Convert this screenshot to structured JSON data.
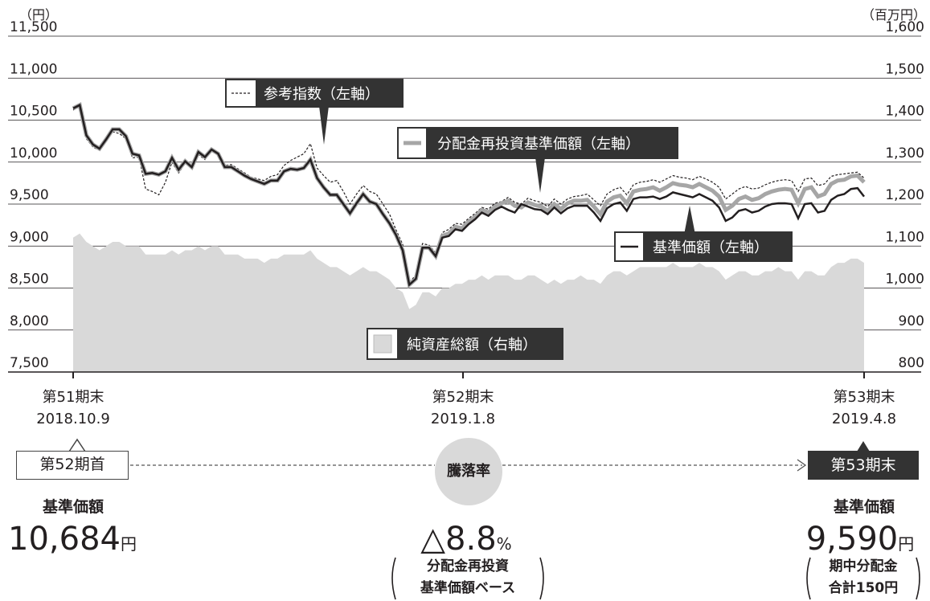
{
  "chart_data": {
    "type": "line",
    "y_left": {
      "unit": "（円）",
      "ylim": [
        7500,
        11500
      ],
      "ticks": [
        "11,500",
        "11,000",
        "10,500",
        "10,000",
        "9,500",
        "9,000",
        "8,500",
        "8,000",
        "7,500"
      ]
    },
    "y_right": {
      "unit": "（百万円）",
      "ylim": [
        800,
        1600
      ],
      "ticks": [
        "1,600",
        "1,500",
        "1,400",
        "1,300",
        "1,200",
        "1,100",
        "1,000",
        "900",
        "800"
      ]
    },
    "x_period_labels": [
      {
        "name": "第51期末",
        "date": "2018.10.9"
      },
      {
        "name": "第52期末",
        "date": "2019.1.8"
      },
      {
        "name": "第53期末",
        "date": "2019.4.8"
      }
    ],
    "legend": {
      "reference_index": "参考指数（左軸）",
      "reinvested_nav": "分配金再投資基準価額（左軸）",
      "nav": "基準価額（左軸）",
      "net_assets": "純資産総額（右軸）"
    },
    "series": [
      {
        "name": "基準価額（左軸）",
        "axis": "left",
        "values": [
          10640,
          10680,
          10320,
          10210,
          10160,
          10270,
          10390,
          10390,
          10310,
          10100,
          10080,
          9860,
          9870,
          9850,
          9890,
          10050,
          9910,
          10010,
          9940,
          10120,
          10060,
          10150,
          10100,
          9940,
          9940,
          9890,
          9840,
          9800,
          9770,
          9740,
          9780,
          9780,
          9890,
          9920,
          9910,
          9930,
          10030,
          9810,
          9700,
          9610,
          9610,
          9500,
          9390,
          9510,
          9620,
          9530,
          9500,
          9380,
          9270,
          9130,
          8950,
          8540,
          8610,
          8980,
          8980,
          8880,
          9100,
          9120,
          9200,
          9180,
          9260,
          9320,
          9400,
          9360,
          9430,
          9470,
          9430,
          9400,
          9500,
          9470,
          9440,
          9430,
          9380,
          9460,
          9390,
          9450,
          9480,
          9480,
          9480,
          9400,
          9300,
          9450,
          9500,
          9520,
          9420,
          9560,
          9580,
          9580,
          9590,
          9560,
          9590,
          9640,
          9620,
          9600,
          9580,
          9620,
          9580,
          9540,
          9460,
          9300,
          9340,
          9420,
          9440,
          9400,
          9420,
          9470,
          9500,
          9510,
          9510,
          9500,
          9330,
          9500,
          9510,
          9400,
          9420,
          9550,
          9600,
          9620,
          9680,
          9690,
          9590
        ]
      },
      {
        "name": "分配金再投資基準価額（左軸）",
        "axis": "left",
        "values": [
          10640,
          10680,
          10320,
          10210,
          10160,
          10270,
          10390,
          10390,
          10310,
          10100,
          10080,
          9860,
          9870,
          9850,
          9890,
          10050,
          9910,
          10010,
          9940,
          10120,
          10060,
          10150,
          10100,
          9940,
          9940,
          9890,
          9840,
          9800,
          9770,
          9740,
          9780,
          9780,
          9890,
          9920,
          9910,
          9930,
          10030,
          9810,
          9700,
          9610,
          9610,
          9500,
          9390,
          9510,
          9620,
          9530,
          9500,
          9380,
          9270,
          9130,
          8950,
          8540,
          8610,
          8980,
          8980,
          8880,
          9120,
          9150,
          9230,
          9210,
          9290,
          9350,
          9430,
          9400,
          9470,
          9510,
          9540,
          9480,
          9460,
          9520,
          9490,
          9470,
          9420,
          9500,
          9440,
          9510,
          9540,
          9540,
          9550,
          9470,
          9380,
          9530,
          9580,
          9600,
          9510,
          9650,
          9670,
          9680,
          9700,
          9660,
          9700,
          9750,
          9730,
          9720,
          9700,
          9740,
          9700,
          9660,
          9590,
          9430,
          9480,
          9560,
          9590,
          9550,
          9570,
          9620,
          9650,
          9670,
          9680,
          9670,
          9510,
          9680,
          9700,
          9590,
          9620,
          9740,
          9780,
          9790,
          9830,
          9840,
          9760
        ]
      },
      {
        "name": "参考指数（左軸）",
        "axis": "left",
        "values": [
          10620,
          10660,
          10280,
          10180,
          10140,
          10250,
          10360,
          10340,
          10280,
          10050,
          10060,
          9680,
          9650,
          9610,
          9760,
          10000,
          9870,
          9990,
          9960,
          10090,
          10030,
          10150,
          10120,
          9960,
          9970,
          9920,
          9870,
          9820,
          9800,
          9780,
          9830,
          9850,
          9960,
          10020,
          10060,
          10100,
          10220,
          9930,
          9840,
          9760,
          9780,
          9650,
          9500,
          9620,
          9720,
          9650,
          9620,
          9500,
          9380,
          9190,
          9020,
          8560,
          8660,
          9030,
          9010,
          8920,
          9160,
          9200,
          9270,
          9260,
          9330,
          9390,
          9460,
          9440,
          9510,
          9530,
          9580,
          9520,
          9500,
          9570,
          9540,
          9520,
          9470,
          9560,
          9500,
          9560,
          9590,
          9600,
          9620,
          9550,
          9480,
          9620,
          9670,
          9700,
          9610,
          9730,
          9760,
          9770,
          9790,
          9760,
          9800,
          9840,
          9820,
          9810,
          9790,
          9830,
          9800,
          9760,
          9700,
          9560,
          9620,
          9680,
          9710,
          9680,
          9690,
          9730,
          9760,
          9780,
          9790,
          9780,
          9650,
          9800,
          9810,
          9720,
          9740,
          9830,
          9850,
          9860,
          9870,
          9880,
          9810
        ]
      },
      {
        "name": "純資産総額（右軸）",
        "axis": "right",
        "values": [
          1120,
          1130,
          1110,
          1100,
          1090,
          1100,
          1110,
          1110,
          1100,
          1100,
          1100,
          1080,
          1080,
          1080,
          1080,
          1090,
          1080,
          1090,
          1090,
          1100,
          1090,
          1100,
          1100,
          1080,
          1080,
          1080,
          1070,
          1070,
          1070,
          1060,
          1070,
          1070,
          1080,
          1080,
          1080,
          1080,
          1090,
          1070,
          1060,
          1050,
          1050,
          1040,
          1030,
          1040,
          1050,
          1040,
          1040,
          1030,
          1020,
          1000,
          990,
          950,
          960,
          990,
          990,
          980,
          1000,
          1000,
          1010,
          1010,
          1020,
          1020,
          1030,
          1020,
          1030,
          1030,
          1030,
          1020,
          1020,
          1030,
          1030,
          1020,
          1010,
          1020,
          1010,
          1020,
          1020,
          1030,
          1020,
          1020,
          1010,
          1030,
          1040,
          1040,
          1030,
          1040,
          1050,
          1050,
          1050,
          1050,
          1050,
          1060,
          1050,
          1050,
          1050,
          1060,
          1050,
          1050,
          1040,
          1020,
          1030,
          1040,
          1040,
          1030,
          1030,
          1040,
          1040,
          1050,
          1040,
          1040,
          1020,
          1040,
          1040,
          1030,
          1030,
          1050,
          1060,
          1060,
          1070,
          1070,
          1060
        ]
      }
    ]
  },
  "footer": {
    "start_box": "第52期首",
    "end_box": "第53期末",
    "circle": "騰落率",
    "start_label": "基準価額",
    "start_value": "10,684",
    "start_unit": "円",
    "change_value": "△8.8",
    "change_unit": "%",
    "change_note_line1": "分配金再投資",
    "change_note_line2": "基準価額ベース",
    "end_label": "基準価額",
    "end_value": "9,590",
    "end_unit": "円",
    "end_note_line1": "期中分配金",
    "end_note_line2": "合計150円"
  },
  "colors": {
    "nav": "#231f20",
    "reinvested": "#a6a6a6",
    "net_assets": "#d9d9d9",
    "label_box": "#333333"
  }
}
